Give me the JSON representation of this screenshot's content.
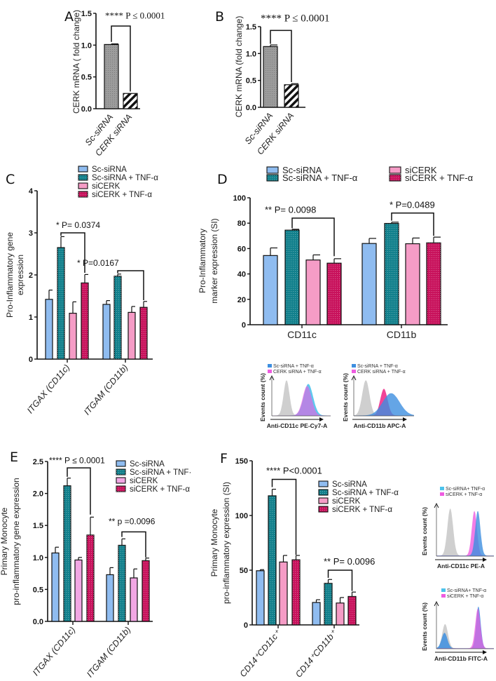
{
  "colors": {
    "sc": "#8fbcf0",
    "sc_tnf": "#12808c",
    "sicerk": "#f59cc6",
    "sicerk_lavender": "#f2a7e4",
    "sicerk_tnf": "#c8125c",
    "grey": "#9c9c9c",
    "flow_blue": "#3d8fe0",
    "flow_cyan": "#4cc3ec",
    "flow_pink": "#ee5ce0",
    "flow_magenta": "#f0308c",
    "flow_grey": "#cfcfcf"
  },
  "chart_data": [
    {
      "id": "A",
      "type": "bar",
      "panel_label": "A",
      "ylabel": [
        "CERK mRNA ( fold change)"
      ],
      "ylim": [
        0,
        1.5
      ],
      "yticks": [
        0,
        0.5,
        1.0,
        1.5
      ],
      "ytick_labels": [
        "0.0",
        "0.5",
        "1.0",
        "1.5"
      ],
      "categories": [
        "Sc-siRNA",
        "CERK siRNA"
      ],
      "values": [
        1.01,
        0.24
      ],
      "errors": [
        0.01,
        0.0
      ],
      "annotations": [
        {
          "text": "**** P ≤ 0.0001",
          "from": 0,
          "to": 1
        }
      ]
    },
    {
      "id": "B",
      "type": "bar",
      "panel_label": "B",
      "ylabel": [
        "CERK mRNA (fold change)"
      ],
      "ylim": [
        0,
        1.5
      ],
      "yticks": [
        0,
        0.5,
        1.0,
        1.5
      ],
      "ytick_labels": [
        "0.0",
        "0.5",
        "1.0",
        "1.5"
      ],
      "categories": [
        "Sc-siRNA",
        "CERK siRNA"
      ],
      "values": [
        1.13,
        0.42
      ],
      "errors": [
        0.03,
        0.02
      ],
      "annotations": [
        {
          "text": "**** P ≤ 0.0001",
          "from": 0,
          "to": 1
        }
      ]
    },
    {
      "id": "C",
      "type": "bar",
      "panel_label": "C",
      "ylabel": [
        "Pro-Inflammatory gene",
        "expression"
      ],
      "ylim": [
        0,
        4
      ],
      "yticks": [
        0,
        1,
        2,
        3,
        4
      ],
      "ytick_labels": [
        "0",
        "1",
        "2",
        "3",
        "4"
      ],
      "categories": [
        "ITGAX (CD11c)",
        "ITGAM (CD11b)"
      ],
      "series": [
        {
          "name": "Sc-siRNA",
          "values": [
            1.42,
            1.3
          ],
          "errors": [
            0.22,
            0.09
          ]
        },
        {
          "name": "Sc-siRNA + TNF-α",
          "values": [
            2.65,
            1.97
          ],
          "errors": [
            0.26,
            0.05
          ]
        },
        {
          "name": "siCERK",
          "values": [
            1.09,
            1.11
          ],
          "errors": [
            0.27,
            0.14
          ]
        },
        {
          "name": "siCERK + TNF-α",
          "values": [
            1.81,
            1.23
          ],
          "errors": [
            0.2,
            0.14
          ]
        }
      ],
      "legend": [
        "Sc-siRNA",
        "Sc-siRNA + TNF-α",
        "siCERK",
        "siCERK + TNF-α"
      ],
      "legend_position": "top",
      "annotations": [
        {
          "text": "* P= 0.0374",
          "group": 0,
          "from": 1,
          "to": 3
        },
        {
          "text": "* P=0.0167",
          "group": 1,
          "from": 1,
          "to": 3
        }
      ]
    },
    {
      "id": "D",
      "type": "bar",
      "panel_label": "D",
      "ylabel": [
        "Pro-Inflammatory",
        "marker expression (SI)"
      ],
      "ylim": [
        0,
        100
      ],
      "yticks": [
        0,
        20,
        40,
        60,
        80,
        100
      ],
      "ytick_labels": [
        "0",
        "20",
        "40",
        "60",
        "80",
        "100"
      ],
      "categories": [
        "CD11c",
        "CD11b"
      ],
      "series": [
        {
          "name": "Sc-siRNA",
          "values": [
            54.5,
            64.0
          ],
          "errors": [
            6.0,
            4.0
          ]
        },
        {
          "name": "Sc-siRNA + TNF-α",
          "values": [
            74.5,
            79.8
          ],
          "errors": [
            0.7,
            1.0
          ]
        },
        {
          "name": "siCERK",
          "values": [
            51.0,
            63.8
          ],
          "errors": [
            4.0,
            4.5
          ]
        },
        {
          "name": "siCERK + TNF-α",
          "values": [
            48.5,
            64.5
          ],
          "errors": [
            3.5,
            4.5
          ]
        }
      ],
      "legend": [
        "Sc-siRNA",
        "Sc-siRNA + TNF-α",
        "siCERK",
        "siCERK + TNF-α"
      ],
      "legend_position": "top",
      "annotations": [
        {
          "text": "** P= 0.0098",
          "group": 0,
          "from": 1,
          "to": 3
        },
        {
          "text": "* P=0.0489",
          "group": 1,
          "from": 1,
          "to": 3
        }
      ]
    },
    {
      "id": "E",
      "type": "bar",
      "panel_label": "E",
      "ylabel": [
        "Primary Monocyte",
        "pro-inflammatory gene expression"
      ],
      "ylim": [
        0,
        2.5
      ],
      "yticks": [
        0,
        0.5,
        1.0,
        1.5,
        2.0,
        2.5
      ],
      "ytick_labels": [
        "0.0",
        "0.5",
        "1.0",
        "1.5",
        "2.0",
        "2.5"
      ],
      "categories": [
        "ITGAX (CD11c)",
        "ITGAM (CD11b)"
      ],
      "series": [
        {
          "name": "Sc-siRNA",
          "values": [
            1.07,
            0.73
          ],
          "errors": [
            0.09,
            0.11
          ]
        },
        {
          "name": "Sc-siRNA + TNF-α",
          "values": [
            2.12,
            1.19
          ],
          "errors": [
            0.12,
            0.1
          ]
        },
        {
          "name": "siCERK",
          "values": [
            0.96,
            0.68
          ],
          "errors": [
            0.04,
            0.14
          ]
        },
        {
          "name": "siCERK + TNF-α",
          "values": [
            1.35,
            0.95
          ],
          "errors": [
            0.28,
            0.04
          ]
        }
      ],
      "legend": [
        "Sc-siRNA",
        "Sc-siRNA + TNF·",
        "siCERK",
        "siCERK + TNF-α"
      ],
      "legend_position": "top-right",
      "annotations": [
        {
          "text": "**** P ≤ 0.0001",
          "group": 0,
          "from": 1,
          "to": 3
        },
        {
          "text": "** p =0.0096",
          "group": 1,
          "from": 1,
          "to": 3
        }
      ]
    },
    {
      "id": "F",
      "type": "bar",
      "panel_label": "F",
      "ylabel": [
        "Primary Monocyte",
        "pro-inflammatory expression  (SI)"
      ],
      "ylim": [
        0,
        150
      ],
      "yticks": [
        0,
        50,
        100,
        150
      ],
      "ytick_labels": [
        "0",
        "50",
        "100",
        "150"
      ],
      "categories": [
        "CD14⁺CD11c⁺",
        "CD14⁺CD11b⁺"
      ],
      "series": [
        {
          "name": "Sc-siRNA",
          "values": [
            49.5,
            20.5
          ],
          "errors": [
            1.0,
            2.5
          ]
        },
        {
          "name": "Sc-siRNA + TNF-α",
          "values": [
            118.0,
            38.0
          ],
          "errors": [
            6.0,
            3.5
          ]
        },
        {
          "name": "siCERK",
          "values": [
            57.5,
            20.0
          ],
          "errors": [
            6.0,
            5.0
          ]
        },
        {
          "name": "siCERK + TNF-α",
          "values": [
            59.5,
            26.0
          ],
          "errors": [
            4.0,
            4.0
          ]
        }
      ],
      "legend": [
        "Sc-siRNA",
        "Sc-siRNA + TNF-α",
        "siCERK",
        "siCERK + TNF-α"
      ],
      "legend_position": "top-right",
      "annotations": [
        {
          "text": "**** P<0.0001",
          "group": 0,
          "from": 1,
          "to": 3
        },
        {
          "text": "** P= 0.0096",
          "group": 1,
          "from": 1,
          "to": 3
        }
      ]
    }
  ],
  "flow_insets": [
    {
      "id": "D1",
      "ylabel": "Events count (%)",
      "xlabel": "Anti-CD11c PE-Cy7-A",
      "legend": [
        "Sc-siRNA + TNF-α",
        "CERK siRNA + TNF-α"
      ]
    },
    {
      "id": "D2",
      "ylabel": "Events count (%)",
      "xlabel": "Anti-CD11b APC-A",
      "legend": [
        "Sc-siRNA + TNF-α",
        "CERK siRNA + TNF-α"
      ]
    },
    {
      "id": "F1",
      "ylabel": "Events count (%)",
      "xlabel": "Anti-CD11c PE-A",
      "legend": [
        "Sc-siRNA+ TNF-α",
        "siCERK + TNF-α"
      ]
    },
    {
      "id": "F2",
      "ylabel": "Events count (%)",
      "xlabel": "Anti-CD11b FITC-A",
      "legend": [
        "Sc-siRNA+ TNF-α",
        "siCERK + TNF-α"
      ]
    }
  ]
}
